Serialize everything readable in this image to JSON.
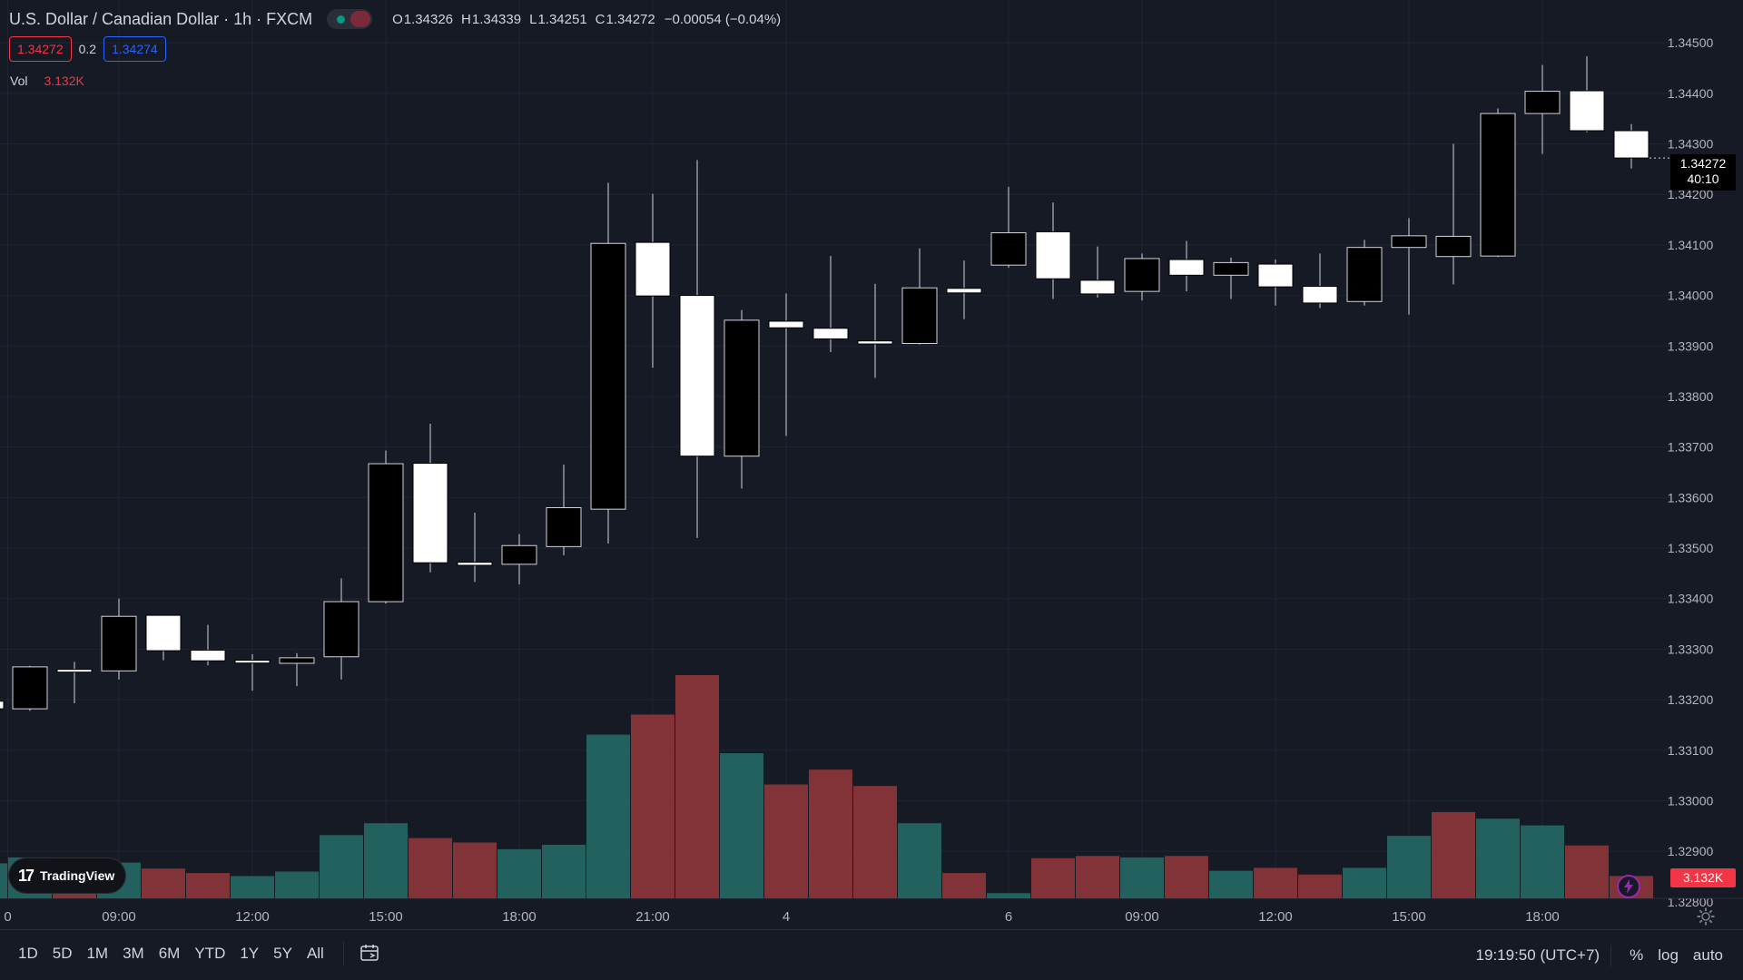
{
  "header": {
    "symbol_title": "U.S. Dollar / Canadian Dollar · 1h · FXCM",
    "ohlc": [
      {
        "k": "O",
        "v": "1.34326"
      },
      {
        "k": "H",
        "v": "1.34339"
      },
      {
        "k": "L",
        "v": "1.34251"
      },
      {
        "k": "C",
        "v": "1.34272"
      },
      {
        "k": "",
        "v": "−0.00054 (−0.04%)"
      }
    ],
    "bid": "1.34272",
    "spread": "0.2",
    "ask": "1.34274",
    "vol_label": "Vol",
    "vol_value": "3.132K"
  },
  "last_price_tag": {
    "price": "1.34272",
    "countdown": "40:10"
  },
  "vol_tag": "3.132K",
  "branding": {
    "logo_text": "TradingView"
  },
  "toolbar": {
    "ranges": [
      "1D",
      "5D",
      "1M",
      "3M",
      "6M",
      "YTD",
      "1Y",
      "5Y",
      "All"
    ],
    "clock": "19:19:50 (UTC+7)",
    "percent": "%",
    "log": "log",
    "auto": "auto"
  },
  "colors": {
    "background": "#161a25",
    "grid": "#202431",
    "candle_up": "#ffffff",
    "candle_down": "#000000",
    "wick": "#d1d4dc",
    "volume_up": "#22615e",
    "volume_down": "#813338",
    "bid_red": "#f23645",
    "ask_blue": "#2962ff",
    "status_green": "#089981",
    "status_flag": "#7a2a3b",
    "bolt_purple": "#9c27b0"
  },
  "chart_data": {
    "type": "candlestick",
    "y_ticks": [
      "1.34500",
      "1.34400",
      "1.34300",
      "1.34200",
      "1.34100",
      "1.34000",
      "1.33900",
      "1.33800",
      "1.33700",
      "1.33600",
      "1.33500",
      "1.33400",
      "1.33300",
      "1.33200",
      "1.33100",
      "1.33000",
      "1.32900",
      "1.32800"
    ],
    "ylim": [
      1.3278,
      1.3452
    ],
    "x_tick_labels": [
      {
        "i": -0.5,
        "label": "0"
      },
      {
        "i": 2,
        "label": "09:00"
      },
      {
        "i": 5,
        "label": "12:00"
      },
      {
        "i": 8,
        "label": "15:00"
      },
      {
        "i": 11,
        "label": "18:00"
      },
      {
        "i": 14,
        "label": "21:00"
      },
      {
        "i": 17,
        "label": "4"
      },
      {
        "i": 22,
        "label": "6"
      },
      {
        "i": 25,
        "label": "09:00"
      },
      {
        "i": 28,
        "label": "12:00"
      },
      {
        "i": 31,
        "label": "15:00"
      },
      {
        "i": 34,
        "label": "18:00"
      }
    ],
    "candles": [
      {
        "o": 1.33182,
        "h": 1.33267,
        "l": 1.33178,
        "c": 1.33265,
        "v": 0.0
      },
      {
        "o": 1.3326,
        "h": 1.33275,
        "l": 1.33193,
        "c": 1.33258,
        "v": 0.0
      },
      {
        "o": 1.33257,
        "h": 1.334,
        "l": 1.3324,
        "c": 1.33365,
        "v": 0.0
      },
      {
        "o": 1.33367,
        "h": 1.33367,
        "l": 1.33278,
        "c": 1.33297,
        "v": 0.0
      },
      {
        "o": 1.33298,
        "h": 1.33348,
        "l": 1.33268,
        "c": 1.33277,
        "v": 0.0
      },
      {
        "o": 1.33278,
        "h": 1.3329,
        "l": 1.33218,
        "c": 1.33276,
        "v": 0.0
      },
      {
        "o": 1.33272,
        "h": 1.33292,
        "l": 1.33227,
        "c": 1.33283,
        "v": 0.0
      },
      {
        "o": 1.33285,
        "h": 1.3344,
        "l": 1.3324,
        "c": 1.33394,
        "v": 0.0
      },
      {
        "o": 1.33394,
        "h": 1.33693,
        "l": 1.3339,
        "c": 1.33667,
        "v": 0.0
      },
      {
        "o": 1.33668,
        "h": 1.33746,
        "l": 1.33452,
        "c": 1.33471,
        "v": 0.0
      },
      {
        "o": 1.33472,
        "h": 1.3357,
        "l": 1.33433,
        "c": 1.33466,
        "v": 0.0
      },
      {
        "o": 1.33468,
        "h": 1.33528,
        "l": 1.33428,
        "c": 1.33505,
        "v": 0.0
      },
      {
        "o": 1.33503,
        "h": 1.33665,
        "l": 1.33486,
        "c": 1.3358,
        "v": 0.0
      },
      {
        "o": 1.33577,
        "h": 1.34223,
        "l": 1.33509,
        "c": 1.34103,
        "v": 0.0
      },
      {
        "o": 1.34105,
        "h": 1.34201,
        "l": 1.33857,
        "c": 1.33999,
        "v": 0.0
      },
      {
        "o": 1.34,
        "h": 1.34268,
        "l": 1.3352,
        "c": 1.33682,
        "v": 0.0
      },
      {
        "o": 1.33682,
        "h": 1.33971,
        "l": 1.33618,
        "c": 1.33951,
        "v": 0.0
      },
      {
        "o": 1.33949,
        "h": 1.34004,
        "l": 1.33722,
        "c": 1.33936,
        "v": 0.0
      },
      {
        "o": 1.33935,
        "h": 1.34078,
        "l": 1.33888,
        "c": 1.33914,
        "v": 0.0
      },
      {
        "o": 1.3391,
        "h": 1.34023,
        "l": 1.33837,
        "c": 1.33904,
        "v": 0.0
      },
      {
        "o": 1.33905,
        "h": 1.34093,
        "l": 1.33903,
        "c": 1.34015,
        "v": 0.0
      },
      {
        "o": 1.34014,
        "h": 1.34069,
        "l": 1.33953,
        "c": 1.34005,
        "v": 0.0
      },
      {
        "o": 1.3406,
        "h": 1.34215,
        "l": 1.34055,
        "c": 1.34124,
        "v": 0.0
      },
      {
        "o": 1.34126,
        "h": 1.34184,
        "l": 1.33993,
        "c": 1.34033,
        "v": 0.0
      },
      {
        "o": 1.3403,
        "h": 1.34097,
        "l": 1.33996,
        "c": 1.34003,
        "v": 0.0
      },
      {
        "o": 1.34008,
        "h": 1.34083,
        "l": 1.3399,
        "c": 1.34073,
        "v": 0.0
      },
      {
        "o": 1.34071,
        "h": 1.34108,
        "l": 1.34008,
        "c": 1.3404,
        "v": 0.0
      },
      {
        "o": 1.3404,
        "h": 1.34075,
        "l": 1.33993,
        "c": 1.34065,
        "v": 0.0
      },
      {
        "o": 1.34062,
        "h": 1.34071,
        "l": 1.3398,
        "c": 1.34017,
        "v": 0.0
      },
      {
        "o": 1.34018,
        "h": 1.34083,
        "l": 1.33975,
        "c": 1.33985,
        "v": 0.0
      },
      {
        "o": 1.33988,
        "h": 1.3411,
        "l": 1.3398,
        "c": 1.34095,
        "v": 0.0
      },
      {
        "o": 1.34095,
        "h": 1.34153,
        "l": 1.33962,
        "c": 1.34118,
        "v": 0.0
      },
      {
        "o": 1.34077,
        "h": 1.343,
        "l": 1.34022,
        "c": 1.34117,
        "v": 0.0
      },
      {
        "o": 1.34078,
        "h": 1.3437,
        "l": 1.34076,
        "c": 1.3436,
        "v": 0.0
      },
      {
        "o": 1.3436,
        "h": 1.34456,
        "l": 1.3428,
        "c": 1.34404,
        "v": 0.0
      },
      {
        "o": 1.34405,
        "h": 1.34473,
        "l": 1.34323,
        "c": 1.34326,
        "v": 0.0
      },
      {
        "o": 1.34326,
        "h": 1.34339,
        "l": 1.34251,
        "c": 1.34272,
        "v": 0.0
      }
    ],
    "volumes": [
      {
        "v": 0.55,
        "dir": "up"
      },
      {
        "v": 0.35,
        "dir": "down"
      },
      {
        "v": 0.48,
        "dir": "up"
      },
      {
        "v": 0.4,
        "dir": "down"
      },
      {
        "v": 0.34,
        "dir": "down"
      },
      {
        "v": 0.3,
        "dir": "up"
      },
      {
        "v": 0.36,
        "dir": "up"
      },
      {
        "v": 0.85,
        "dir": "up"
      },
      {
        "v": 1.01,
        "dir": "up"
      },
      {
        "v": 0.81,
        "dir": "down"
      },
      {
        "v": 0.75,
        "dir": "down"
      },
      {
        "v": 0.66,
        "dir": "up"
      },
      {
        "v": 0.72,
        "dir": "up"
      },
      {
        "v": 2.2,
        "dir": "up"
      },
      {
        "v": 2.47,
        "dir": "down"
      },
      {
        "v": 3.0,
        "dir": "down"
      },
      {
        "v": 1.95,
        "dir": "up"
      },
      {
        "v": 1.53,
        "dir": "down"
      },
      {
        "v": 1.73,
        "dir": "down"
      },
      {
        "v": 1.51,
        "dir": "down"
      },
      {
        "v": 1.01,
        "dir": "up"
      },
      {
        "v": 0.34,
        "dir": "down"
      },
      {
        "v": 0.07,
        "dir": "up"
      },
      {
        "v": 0.54,
        "dir": "down"
      },
      {
        "v": 0.57,
        "dir": "down"
      },
      {
        "v": 0.55,
        "dir": "up"
      },
      {
        "v": 0.57,
        "dir": "down"
      },
      {
        "v": 0.37,
        "dir": "up"
      },
      {
        "v": 0.41,
        "dir": "down"
      },
      {
        "v": 0.32,
        "dir": "down"
      },
      {
        "v": 0.41,
        "dir": "up"
      },
      {
        "v": 0.84,
        "dir": "up"
      },
      {
        "v": 1.16,
        "dir": "down"
      },
      {
        "v": 1.07,
        "dir": "up"
      },
      {
        "v": 0.98,
        "dir": "up"
      },
      {
        "v": 0.71,
        "dir": "down"
      },
      {
        "v": 0.3,
        "dir": "down"
      }
    ],
    "first_visible_volume_left": {
      "v": 0.47,
      "dir": "up"
    },
    "volume_max": 3.0,
    "grid": true,
    "legend": "top-left"
  }
}
